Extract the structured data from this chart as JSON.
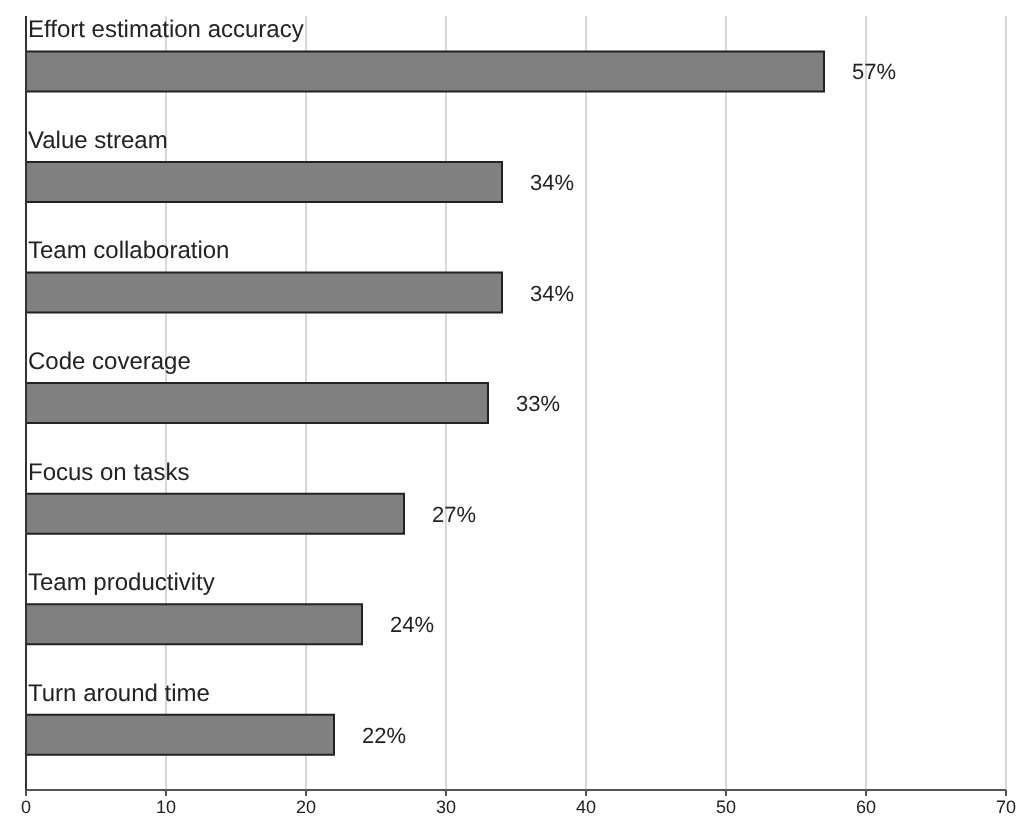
{
  "chart_data": {
    "type": "bar",
    "orientation": "horizontal",
    "categories": [
      "Effort estimation accuracy",
      "Value stream",
      "Team collaboration",
      "Code coverage",
      "Focus on tasks",
      "Team productivity",
      "Turn around time"
    ],
    "values": [
      57,
      34,
      34,
      33,
      27,
      24,
      22
    ],
    "value_labels": [
      "57%",
      "34%",
      "34%",
      "33%",
      "27%",
      "24%",
      "22%"
    ],
    "color": "#808080",
    "xlim": [
      0,
      70
    ],
    "xticks": [
      0,
      10,
      20,
      30,
      40,
      50,
      60,
      70
    ],
    "grid": "x"
  }
}
